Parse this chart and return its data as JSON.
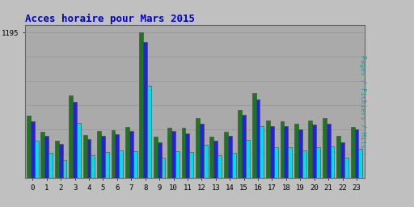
{
  "title": "Acces horaire pour Mars 2015",
  "ylabel": "Pages / Fichiers / Hits",
  "hours": [
    0,
    1,
    2,
    3,
    4,
    5,
    6,
    7,
    8,
    9,
    10,
    11,
    12,
    13,
    14,
    15,
    16,
    17,
    18,
    19,
    20,
    21,
    22,
    23
  ],
  "ytick_val": 1195,
  "ymax": 1260,
  "pages": [
    510,
    380,
    310,
    680,
    355,
    385,
    395,
    420,
    1195,
    340,
    415,
    415,
    490,
    340,
    380,
    560,
    700,
    470,
    465,
    445,
    470,
    490,
    350,
    420
  ],
  "fichiers": [
    465,
    345,
    280,
    625,
    320,
    350,
    360,
    385,
    1120,
    295,
    385,
    370,
    445,
    308,
    348,
    520,
    645,
    430,
    430,
    400,
    440,
    450,
    295,
    400
  ],
  "hits": [
    310,
    205,
    150,
    455,
    185,
    215,
    225,
    220,
    760,
    165,
    220,
    215,
    275,
    185,
    205,
    315,
    425,
    255,
    255,
    225,
    255,
    260,
    165,
    240
  ],
  "color_pages": "#1a7a1a",
  "color_fichiers": "#2222dd",
  "color_hits": "#00ddee",
  "bg_plot": "#aaaaaa",
  "bg_fig": "#c0c0c0",
  "title_color": "#0000cc",
  "ylabel_color": "#00aaaa",
  "grid_color": "#999999",
  "bar_edge_color": "#444444",
  "bar_width": 0.28,
  "figsize": [
    5.12,
    2.56
  ],
  "dpi": 100
}
